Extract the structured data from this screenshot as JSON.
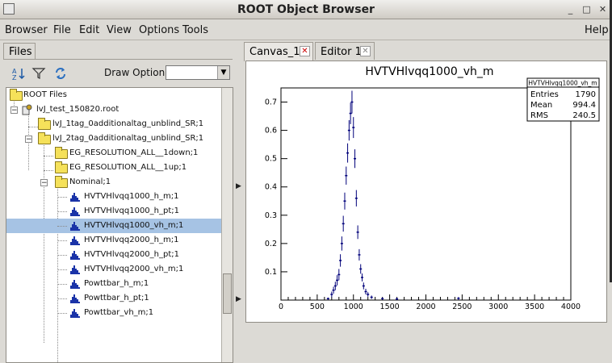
{
  "window": {
    "title": "ROOT Object Browser",
    "buttons": [
      "_",
      "□",
      "✕"
    ]
  },
  "menu": [
    {
      "label": "Browser"
    },
    {
      "label": "File"
    },
    {
      "label": "Edit"
    },
    {
      "label": "View"
    },
    {
      "label": "Options"
    },
    {
      "label": "Tools"
    },
    {
      "label": "Help"
    }
  ],
  "left": {
    "tab": "Files",
    "draw_option_label": "Draw Option:",
    "draw_option_value": "",
    "toolbar_icons": [
      "sort-icon",
      "filter-icon",
      "refresh-icon"
    ],
    "tree": [
      {
        "label": "ROOT Files",
        "icon": "folder"
      },
      {
        "label": "lvJ_test_150820.root",
        "icon": "root-file"
      },
      {
        "label": "lvJ_1tag_0additionaltag_unblind_SR;1",
        "icon": "folder"
      },
      {
        "label": "lvJ_2tag_0additionaltag_unblind_SR;1",
        "icon": "folder"
      },
      {
        "label": "EG_RESOLUTION_ALL__1down;1",
        "icon": "folder"
      },
      {
        "label": "EG_RESOLUTION_ALL__1up;1",
        "icon": "folder"
      },
      {
        "label": "Nominal;1",
        "icon": "folder"
      },
      {
        "label": "HVTVHlvqq1000_h_m;1",
        "icon": "histogram"
      },
      {
        "label": "HVTVHlvqq1000_h_pt;1",
        "icon": "histogram"
      },
      {
        "label": "HVTVHlvqq1000_vh_m;1",
        "icon": "histogram",
        "selected": true
      },
      {
        "label": "HVTVHlvqq2000_h_m;1",
        "icon": "histogram"
      },
      {
        "label": "HVTVHlvqq2000_h_pt;1",
        "icon": "histogram"
      },
      {
        "label": "HVTVHlvqq2000_vh_m;1",
        "icon": "histogram"
      },
      {
        "label": "Powttbar_h_m;1",
        "icon": "histogram"
      },
      {
        "label": "Powttbar_h_pt;1",
        "icon": "histogram"
      },
      {
        "label": "Powttbar_vh_m;1",
        "icon": "histogram"
      }
    ]
  },
  "right": {
    "tabs": [
      {
        "label": "Canvas_1",
        "active": true
      },
      {
        "label": "Editor 1",
        "active": false
      }
    ]
  },
  "stats": {
    "title": "HVTVHlvqq1000_vh_m",
    "rows": [
      {
        "key": "Entries",
        "value": "1790"
      },
      {
        "key": "Mean",
        "value": "994.4"
      },
      {
        "key": "RMS",
        "value": "240.5"
      }
    ]
  },
  "colors": {
    "selection": "#a6c3e4",
    "histogram": "#00007a",
    "close": "#cc0000"
  },
  "chart_data": {
    "type": "scatter",
    "title": "HVTVHlvqq1000_vh_m",
    "xlabel": "",
    "ylabel": "",
    "xlim": [
      0,
      4000
    ],
    "ylim": [
      0,
      0.75
    ],
    "x_ticks": [
      0,
      500,
      1000,
      1500,
      2000,
      2500,
      3000,
      3500,
      4000
    ],
    "y_ticks": [
      0.1,
      0.2,
      0.3,
      0.4,
      0.5,
      0.6,
      0.7
    ],
    "series": [
      {
        "x": [
          650,
          700,
          725,
          750,
          775,
          800,
          820,
          840,
          860,
          880,
          900,
          920,
          940,
          960,
          980,
          1000,
          1020,
          1040,
          1060,
          1080,
          1100,
          1120,
          1140,
          1170,
          1200,
          1250,
          1400,
          1600,
          2450
        ],
        "y": [
          0.005,
          0.02,
          0.035,
          0.05,
          0.07,
          0.09,
          0.14,
          0.2,
          0.27,
          0.35,
          0.44,
          0.52,
          0.6,
          0.66,
          0.7,
          0.61,
          0.5,
          0.36,
          0.24,
          0.16,
          0.11,
          0.08,
          0.05,
          0.03,
          0.02,
          0.01,
          0.005,
          0.004,
          0.006
        ],
        "err": [
          0.004,
          0.01,
          0.012,
          0.015,
          0.018,
          0.02,
          0.022,
          0.025,
          0.028,
          0.03,
          0.032,
          0.034,
          0.036,
          0.038,
          0.04,
          0.037,
          0.033,
          0.029,
          0.024,
          0.02,
          0.017,
          0.014,
          0.012,
          0.01,
          0.008,
          0.006,
          0.004,
          0.004,
          0.005
        ]
      }
    ]
  }
}
